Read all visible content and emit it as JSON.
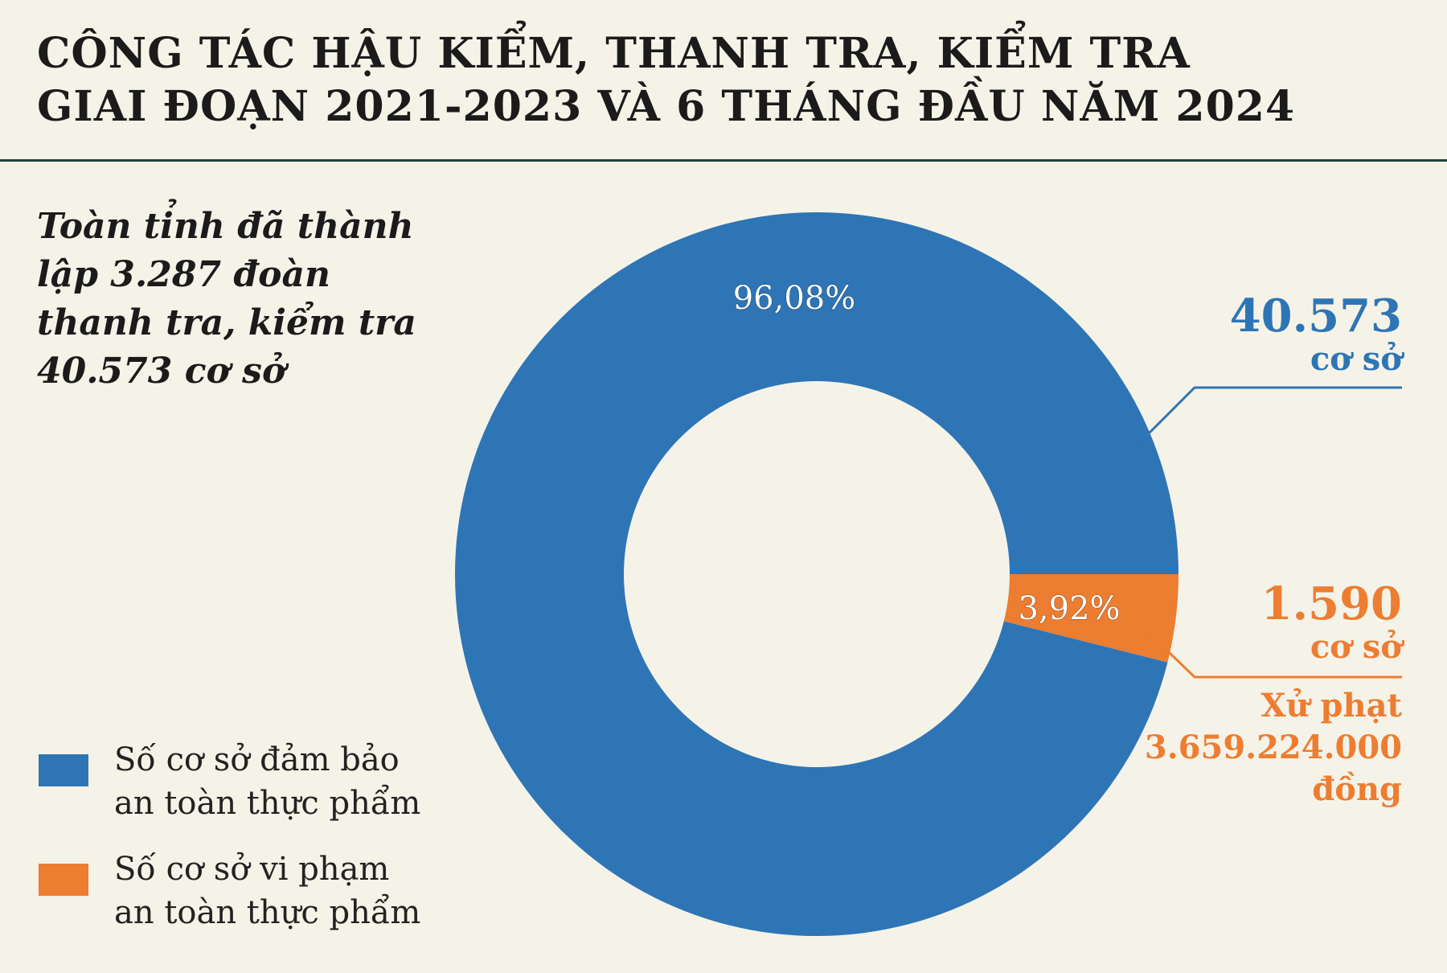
{
  "header": {
    "title_line1": "CÔNG TÁC HẬU KIỂM, THANH TRA, KIỂM TRA",
    "title_line2": "GIAI ĐOẠN 2021-2023 VÀ 6 THÁNG ĐẦU NĂM 2024"
  },
  "subtitle": {
    "line1": "Toàn tỉnh đã thành",
    "line2": "lập 3.287 đoàn",
    "line3": "thanh tra, kiểm tra",
    "line4": "40.573 cơ sở"
  },
  "legend": {
    "item1_line1": "Số cơ sở đảm bảo",
    "item1_line2": "an toàn thực phẩm",
    "item2_line1": "Số cơ sở vi phạm",
    "item2_line2": "an toàn thực phẩm"
  },
  "callouts": {
    "blue_value": "40.573",
    "blue_unit": "cơ sở",
    "orange_value": "1.590",
    "orange_unit": "cơ sở",
    "fine_line1": "Xử phạt",
    "fine_line2": "3.659.224.000",
    "fine_line3": "đồng"
  },
  "colors": {
    "blue": "#2e75b6",
    "orange": "#ed7d31",
    "background": "#f5f3e8",
    "rule": "#1f4538"
  },
  "chart_data": {
    "type": "pie",
    "donut": true,
    "categories": [
      "Số cơ sở đảm bảo an toàn thực phẩm",
      "Số cơ sở vi phạm an toàn thực phẩm"
    ],
    "values": [
      96.08,
      3.92
    ],
    "labels": [
      "96,08%",
      "3,92%"
    ],
    "colors": [
      "#2e75b6",
      "#ed7d31"
    ],
    "legend_position": "bottom-left"
  }
}
